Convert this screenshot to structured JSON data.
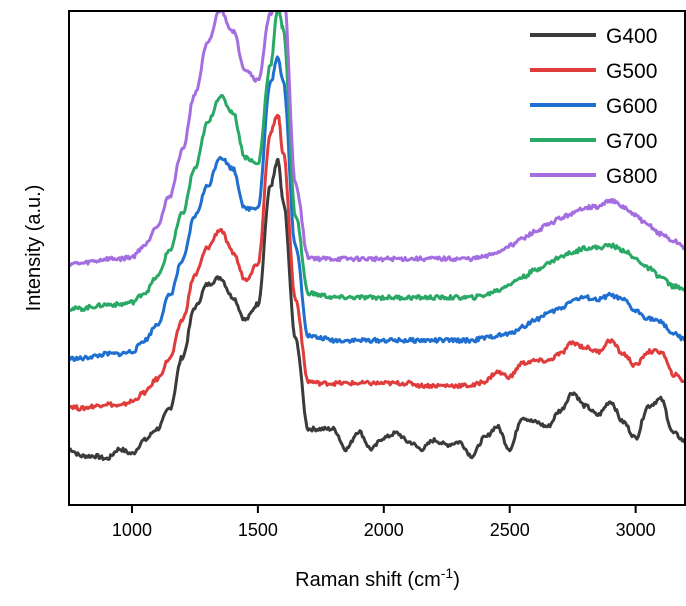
{
  "chart_data": {
    "type": "line",
    "title": "",
    "xlabel": "Raman shift (cm",
    "xlabel_sup": "-1",
    "xlabel_close": ")",
    "ylabel": "Intensity (a.u.)",
    "xlim": [
      750,
      3200
    ],
    "ylim": [
      0,
      100
    ],
    "xticks": [
      1000,
      1500,
      2000,
      2500,
      3000
    ],
    "xtick_labels": [
      "1000",
      "1500",
      "2000",
      "2500",
      "3000"
    ],
    "y_tick_labels_shown": false,
    "grid": false,
    "legend_position": "top-right",
    "x": [
      750,
      800,
      850,
      900,
      950,
      1000,
      1050,
      1100,
      1150,
      1200,
      1250,
      1300,
      1350,
      1400,
      1450,
      1500,
      1550,
      1580,
      1600,
      1650,
      1700,
      1750,
      1800,
      1850,
      1900,
      1950,
      2000,
      2050,
      2100,
      2150,
      2200,
      2250,
      2300,
      2350,
      2400,
      2450,
      2500,
      2550,
      2600,
      2650,
      2700,
      2750,
      2800,
      2850,
      2900,
      2950,
      3000,
      3050,
      3100,
      3150,
      3200
    ],
    "series": [
      {
        "name": "G400",
        "color": "#3b3b3b",
        "values": [
          7.3,
          5.8,
          5.8,
          5.2,
          7.3,
          6.3,
          9.2,
          11.6,
          16.0,
          27.0,
          37.7,
          42.6,
          44.1,
          39.9,
          35.0,
          38.4,
          63.7,
          69.1,
          60.5,
          30.8,
          11.6,
          11.6,
          11.6,
          7.3,
          11.1,
          7.3,
          9.7,
          10.7,
          8.8,
          7.3,
          9.2,
          8.2,
          8.8,
          5.8,
          9.7,
          12.1,
          7.3,
          14.1,
          13.1,
          12.1,
          15.5,
          19.4,
          16.5,
          14.6,
          17.5,
          13.1,
          9.7,
          16.5,
          18.0,
          10.7,
          8.8
        ]
      },
      {
        "name": "G500",
        "color": "#e03c3c",
        "values": [
          16.5,
          16.0,
          16.5,
          17.0,
          16.5,
          17.5,
          19.4,
          22.3,
          26.7,
          35.0,
          44.6,
          50.5,
          54.4,
          49.5,
          43.7,
          47.1,
          75.2,
          79.1,
          70.9,
          39.3,
          21.8,
          21.4,
          21.4,
          21.4,
          21.4,
          21.4,
          21.4,
          21.4,
          21.4,
          20.9,
          20.9,
          20.9,
          20.9,
          20.9,
          21.8,
          23.8,
          22.8,
          25.7,
          26.2,
          26.2,
          27.7,
          30.1,
          29.1,
          28.2,
          30.6,
          27.7,
          25.2,
          28.2,
          28.2,
          23.3,
          21.8
        ]
      },
      {
        "name": "G600",
        "color": "#1f6fd0",
        "values": [
          26.7,
          26.7,
          27.2,
          27.7,
          27.7,
          28.2,
          30.6,
          34.0,
          40.3,
          47.6,
          57.3,
          63.7,
          70.0,
          67.5,
          58.8,
          59.2,
          85.9,
          91.3,
          86.4,
          50.5,
          31.6,
          31.1,
          30.6,
          30.6,
          30.6,
          30.6,
          30.6,
          30.6,
          30.6,
          30.6,
          30.6,
          30.6,
          30.6,
          30.6,
          31.1,
          31.6,
          32.0,
          33.5,
          35.0,
          36.4,
          37.4,
          39.3,
          39.8,
          39.3,
          40.3,
          39.3,
          36.9,
          35.4,
          34.5,
          32.0,
          30.6
        ]
      },
      {
        "name": "G700",
        "color": "#2aa866",
        "values": [
          37.4,
          37.4,
          37.9,
          38.3,
          38.3,
          38.8,
          40.8,
          44.2,
          50.0,
          57.8,
          67.5,
          77.2,
          83.0,
          79.6,
          69.9,
          68.4,
          89.8,
          102.0,
          97.6,
          57.3,
          40.8,
          40.3,
          39.8,
          39.8,
          39.8,
          39.8,
          39.8,
          39.8,
          39.8,
          39.8,
          39.8,
          39.8,
          39.8,
          39.8,
          40.3,
          41.3,
          42.7,
          44.2,
          45.6,
          47.1,
          48.5,
          49.5,
          50.5,
          50.5,
          51.0,
          50.0,
          48.1,
          46.1,
          44.2,
          42.2,
          41.3
        ]
      },
      {
        "name": "G800",
        "color": "#a56ee0",
        "values": [
          47.1,
          47.1,
          47.6,
          48.1,
          48.1,
          48.5,
          51.0,
          55.3,
          61.6,
          71.4,
          83.5,
          94.2,
          101.5,
          97.1,
          88.8,
          86.4,
          100.5,
          109.7,
          106.8,
          64.1,
          48.5,
          48.1,
          48.1,
          48.1,
          48.1,
          48.1,
          48.1,
          48.1,
          48.1,
          48.1,
          48.1,
          48.1,
          48.1,
          48.1,
          48.5,
          49.5,
          51.0,
          52.4,
          53.9,
          55.3,
          56.8,
          57.8,
          59.2,
          59.2,
          60.7,
          59.2,
          57.3,
          55.3,
          53.4,
          51.9,
          50.5
        ]
      }
    ]
  }
}
